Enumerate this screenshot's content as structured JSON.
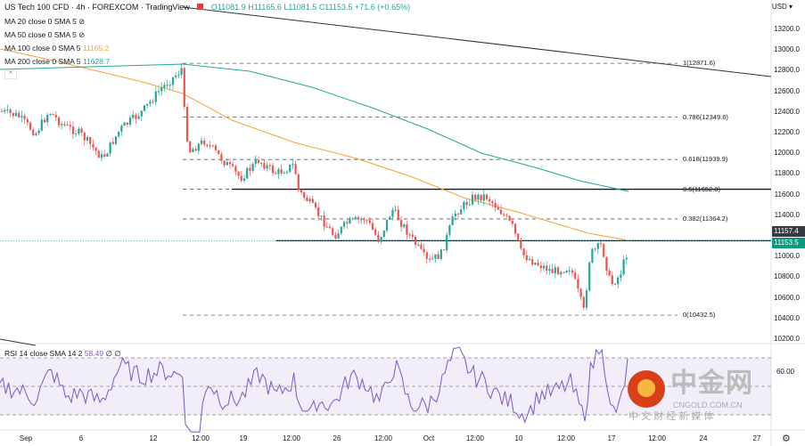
{
  "header": {
    "symbol": "US Tech 100 CFD",
    "interval": "4h",
    "source": "FOREXCOM",
    "platform": "TradingView",
    "ohlc": {
      "open": "O11081.9",
      "high": "H11165.6",
      "low": "L11081.5",
      "close": "C11153.5",
      "change": "+71.6 (+0.65%)"
    }
  },
  "indicators": [
    {
      "label": "MA 20 close 0 SMA 5",
      "value": "",
      "hidden": true
    },
    {
      "label": "MA 50 close 0 SMA 5",
      "value": "",
      "hidden": true
    },
    {
      "label": "MA 100 close 0 SMA 5",
      "value": "11165.2",
      "color": "#f5a33a"
    },
    {
      "label": "MA 200 close 0 SMA 5",
      "value": "11628.7",
      "color": "#26a69a"
    }
  ],
  "currency": "USD",
  "price_axis": [
    "13200.0",
    "13000.0",
    "12800.0",
    "12600.0",
    "12400.0",
    "12200.0",
    "12000.0",
    "11800.0",
    "11600.0",
    "11400.0",
    "11000.0",
    "10800.0",
    "10600.0",
    "10400.0",
    "10200.0"
  ],
  "price_tags": {
    "ma": "11157.4",
    "last": "11153.5"
  },
  "fib_levels": [
    {
      "label": "1(12871.6)",
      "price": 12871.6
    },
    {
      "label": "0.786(12349.6)",
      "price": 12349.6
    },
    {
      "label": "0.618(11939.9)",
      "price": 11939.9
    },
    {
      "label": "0.5(11652.0)",
      "price": 11652.0
    },
    {
      "label": "0.382(11364.2)",
      "price": 11364.2
    },
    {
      "label": "0(10432.5)",
      "price": 10432.5
    }
  ],
  "rsi": {
    "label": "RSI 14 close SMA 14 2",
    "value": "58.49",
    "extra": "∅ ∅",
    "axis": "60.00"
  },
  "time_axis": [
    "Sep",
    "6",
    "12",
    "12:00",
    "19",
    "12:00",
    "26",
    "12:00",
    "Oct",
    "12:00",
    "10",
    "12:00",
    "17",
    "12:00",
    "24",
    "27"
  ],
  "colors": {
    "up": "#26a69a",
    "down": "#ef5350",
    "ma100": "#f5a33a",
    "ma200": "#26a69a",
    "rsi": "#7e57c2"
  },
  "watermark": {
    "brand": "中金网",
    "domain": "CNGOLD.COM.CN",
    "tagline": "中 文 财 经 新 媒 体"
  }
}
